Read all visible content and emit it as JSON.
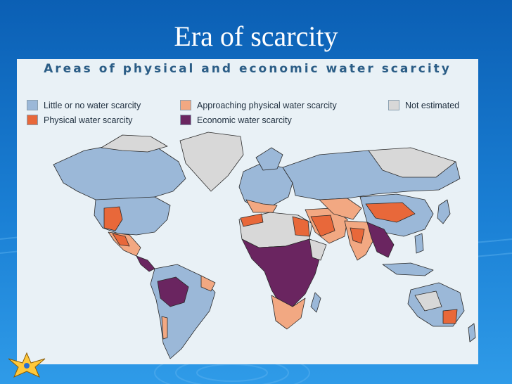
{
  "slide": {
    "title": "Era of scarcity"
  },
  "map": {
    "heading": "Areas of physical and economic water scarcity",
    "legend": [
      {
        "label": "Little or no water scarcity",
        "color": "#9bb8d8"
      },
      {
        "label": "Approaching physical water scarcity",
        "color": "#f2a882"
      },
      {
        "label": "Not estimated",
        "color": "#d8d8d8"
      },
      {
        "label": "Physical water scarcity",
        "color": "#e8683a"
      },
      {
        "label": "Economic water scarcity",
        "color": "#6a2560"
      }
    ],
    "colors": {
      "ocean": "#e9f1f6",
      "border": "#2a2a2a"
    }
  },
  "logo": {
    "icon": "eagle-emblem-icon"
  }
}
